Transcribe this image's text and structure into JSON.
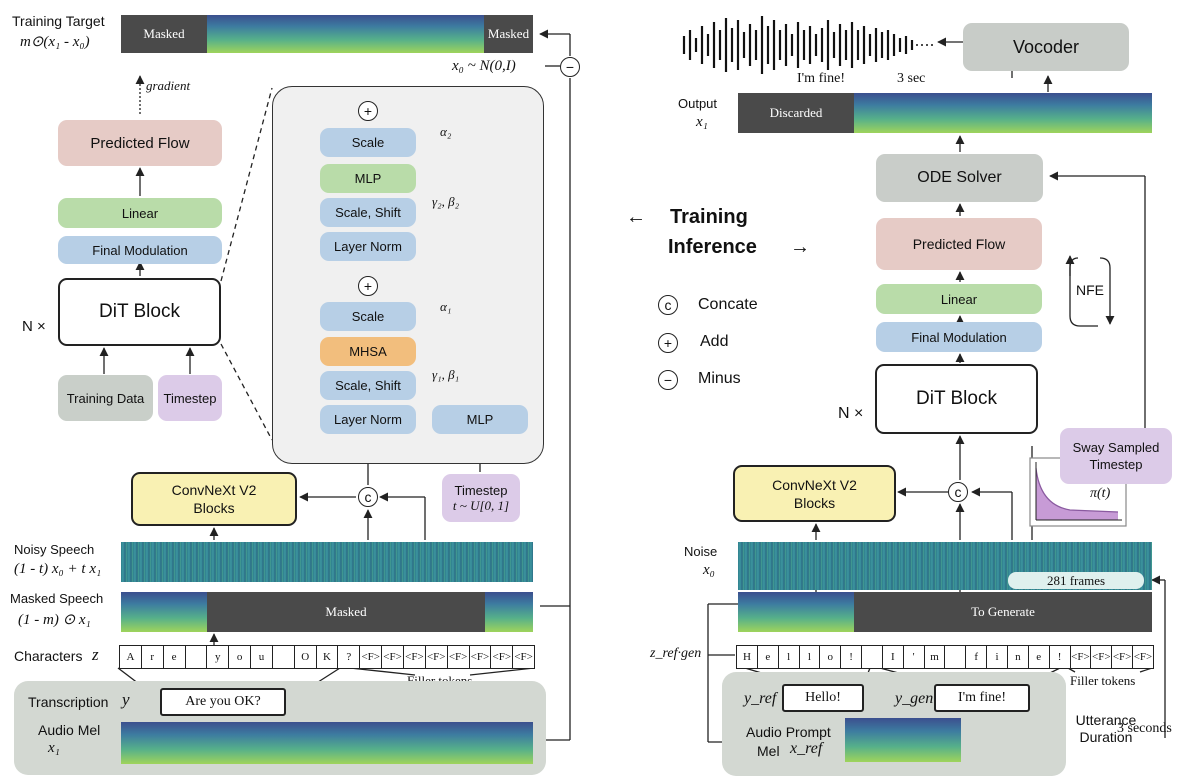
{
  "left": {
    "training_target_label": "Training Target",
    "training_target_formula": "m⊙(x₁ - x₀)",
    "masked_label": "Masked",
    "gradient_label": "gradient",
    "x0_dist": "x₀ ~ N(0,I)",
    "predicted_flow": "Predicted Flow",
    "linear": "Linear",
    "final_modulation": "Final Modulation",
    "dit_block": "DiT Block",
    "n_times": "N ×",
    "training_data": "Training Data",
    "timestep": "Timestep",
    "convnext": "ConvNeXt V2 Blocks",
    "timestep_sample": "Timestep",
    "timestep_dist": "t ~ U[0, 1]",
    "noisy_speech_label": "Noisy Speech",
    "noisy_speech_formula": "(1 - t) x₀ + t x₁",
    "masked_speech_label": "Masked Speech",
    "masked_speech_formula": "(1 - m) ⊙ x₁",
    "characters_label": "Characters",
    "characters_var": "z",
    "characters": [
      "A",
      "r",
      "e",
      "",
      "y",
      "o",
      "u",
      "",
      "O",
      "K",
      "?",
      "<F>",
      "<F>",
      "<F>",
      "<F>",
      "<F>",
      "<F>",
      "<F>",
      "<F>"
    ],
    "filler_tokens": "Filler tokens",
    "transcription_label": "Transcription",
    "transcription_var": "y",
    "transcription_text": "Are you OK?",
    "audio_mel_label": "Audio Mel",
    "audio_mel_var": "x₁"
  },
  "dit_detail": {
    "scale_top": "Scale",
    "mlp_top": "MLP",
    "scale_shift_top": "Scale, Shift",
    "layer_norm_top": "Layer Norm",
    "scale_bottom": "Scale",
    "mhsa": "MHSA",
    "scale_shift_bottom": "Scale, Shift",
    "layer_norm_bottom": "Layer Norm",
    "mlp_side": "MLP",
    "alpha2": "α₂",
    "gamma2_beta2": "γ₂, β₂",
    "alpha1": "α₁",
    "gamma1_beta1": "γ₁, β₁"
  },
  "legend": {
    "training": "Training",
    "inference": "Inference",
    "left_arrow": "←",
    "right_arrow": "→",
    "concate": "Concate",
    "add": "Add",
    "minus": "Minus",
    "concate_symbol": "c",
    "add_symbol": "+",
    "minus_symbol": "−"
  },
  "right": {
    "vocoder": "Vocoder",
    "im_fine": "I'm fine!",
    "three_sec": "3 sec",
    "output_label": "Output",
    "output_var": "x₁",
    "discarded": "Discarded",
    "ode_solver": "ODE Solver",
    "predicted_flow": "Predicted Flow",
    "nfe": "NFE",
    "linear": "Linear",
    "final_modulation": "Final Modulation",
    "dit_block": "DiT Block",
    "n_times": "N ×",
    "sway": "Sway Sampled Timestep",
    "pi_t": "π(t)",
    "convnext": "ConvNeXt V2 Blocks",
    "noise_label": "Noise",
    "noise_var": "x₀",
    "frames": "281 frames",
    "to_generate": "To Generate",
    "z_ref_gen": "z_ref·gen",
    "characters": [
      "H",
      "e",
      "l",
      "l",
      "o",
      "!",
      "",
      "I",
      "'",
      "m",
      "",
      "f",
      "i",
      "n",
      "e",
      "!",
      "<F>",
      "<F>",
      "<F>",
      "<F>"
    ],
    "filler_tokens": "Filler tokens",
    "y_ref": "y_ref",
    "hello": "Hello!",
    "y_gen": "y_gen",
    "im_fine_box": "I'm fine!",
    "utterance_duration": "Utterance Duration",
    "three_seconds": "3 seconds",
    "audio_prompt": "Audio Prompt",
    "mel": "Mel",
    "x_ref": "x_ref"
  }
}
